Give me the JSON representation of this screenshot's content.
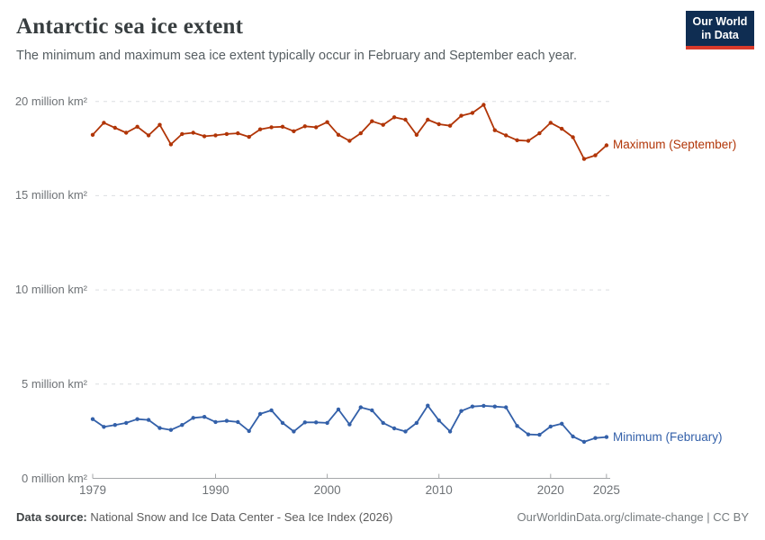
{
  "header": {
    "title": "Antarctic sea ice extent",
    "subtitle": "The minimum and maximum sea ice extent typically occur in February and September each year.",
    "logo": {
      "line1": "Our World",
      "line2": "in Data",
      "bg_color": "#0f2d52",
      "accent_color": "#d93a2b"
    }
  },
  "chart_data": {
    "type": "line",
    "title": "Antarctic sea ice extent",
    "xlabel": "",
    "ylabel": "million km²",
    "xlim": [
      1979,
      2025
    ],
    "ylim": [
      0,
      20
    ],
    "grid": "horizontal-dashed",
    "legend_position": "right-end-labels",
    "xticks": [
      1979,
      1990,
      2000,
      2010,
      2020,
      2025
    ],
    "yticks": [
      {
        "value": 0,
        "label": "0 million km²"
      },
      {
        "value": 5,
        "label": "5 million km²"
      },
      {
        "value": 10,
        "label": "10 million km²"
      },
      {
        "value": 15,
        "label": "15 million km²"
      },
      {
        "value": 20,
        "label": "20 million km²"
      }
    ],
    "x": [
      1979,
      1980,
      1981,
      1982,
      1983,
      1984,
      1985,
      1986,
      1987,
      1988,
      1989,
      1990,
      1991,
      1992,
      1993,
      1994,
      1995,
      1996,
      1997,
      1998,
      1999,
      2000,
      2001,
      2002,
      2003,
      2004,
      2005,
      2006,
      2007,
      2008,
      2009,
      2010,
      2011,
      2012,
      2013,
      2014,
      2015,
      2016,
      2017,
      2018,
      2019,
      2020,
      2021,
      2022,
      2023,
      2024,
      2025
    ],
    "series": [
      {
        "name": "Maximum (September)",
        "color": "#b13507",
        "values": [
          18.23,
          18.87,
          18.6,
          18.34,
          18.66,
          18.2,
          18.76,
          17.72,
          18.27,
          18.34,
          18.15,
          18.2,
          18.27,
          18.31,
          18.12,
          18.52,
          18.63,
          18.66,
          18.42,
          18.68,
          18.63,
          18.9,
          18.23,
          17.91,
          18.31,
          18.95,
          18.76,
          19.16,
          19.03,
          18.23,
          19.03,
          18.79,
          18.71,
          19.24,
          19.39,
          19.82,
          18.47,
          18.2,
          17.94,
          17.91,
          18.31,
          18.87,
          18.55,
          18.1,
          16.95,
          17.14,
          17.67
        ]
      },
      {
        "name": "Minimum (February)",
        "color": "#3360a9",
        "values": [
          3.14,
          2.73,
          2.83,
          2.94,
          3.14,
          3.1,
          2.67,
          2.57,
          2.83,
          3.21,
          3.26,
          2.99,
          3.05,
          2.99,
          2.51,
          3.42,
          3.61,
          2.94,
          2.49,
          2.97,
          2.97,
          2.94,
          3.66,
          2.86,
          3.77,
          3.61,
          2.94,
          2.65,
          2.49,
          2.94,
          3.86,
          3.07,
          2.49,
          3.57,
          3.81,
          3.85,
          3.81,
          3.77,
          2.78,
          2.33,
          2.31,
          2.75,
          2.9,
          2.22,
          1.94,
          2.14,
          2.19
        ]
      }
    ]
  },
  "footer": {
    "source_label": "Data source:",
    "source_text": " National Snow and Ice Data Center - Sea Ice Index (2026)",
    "attribution": "OurWorldinData.org/climate-change | CC BY"
  }
}
